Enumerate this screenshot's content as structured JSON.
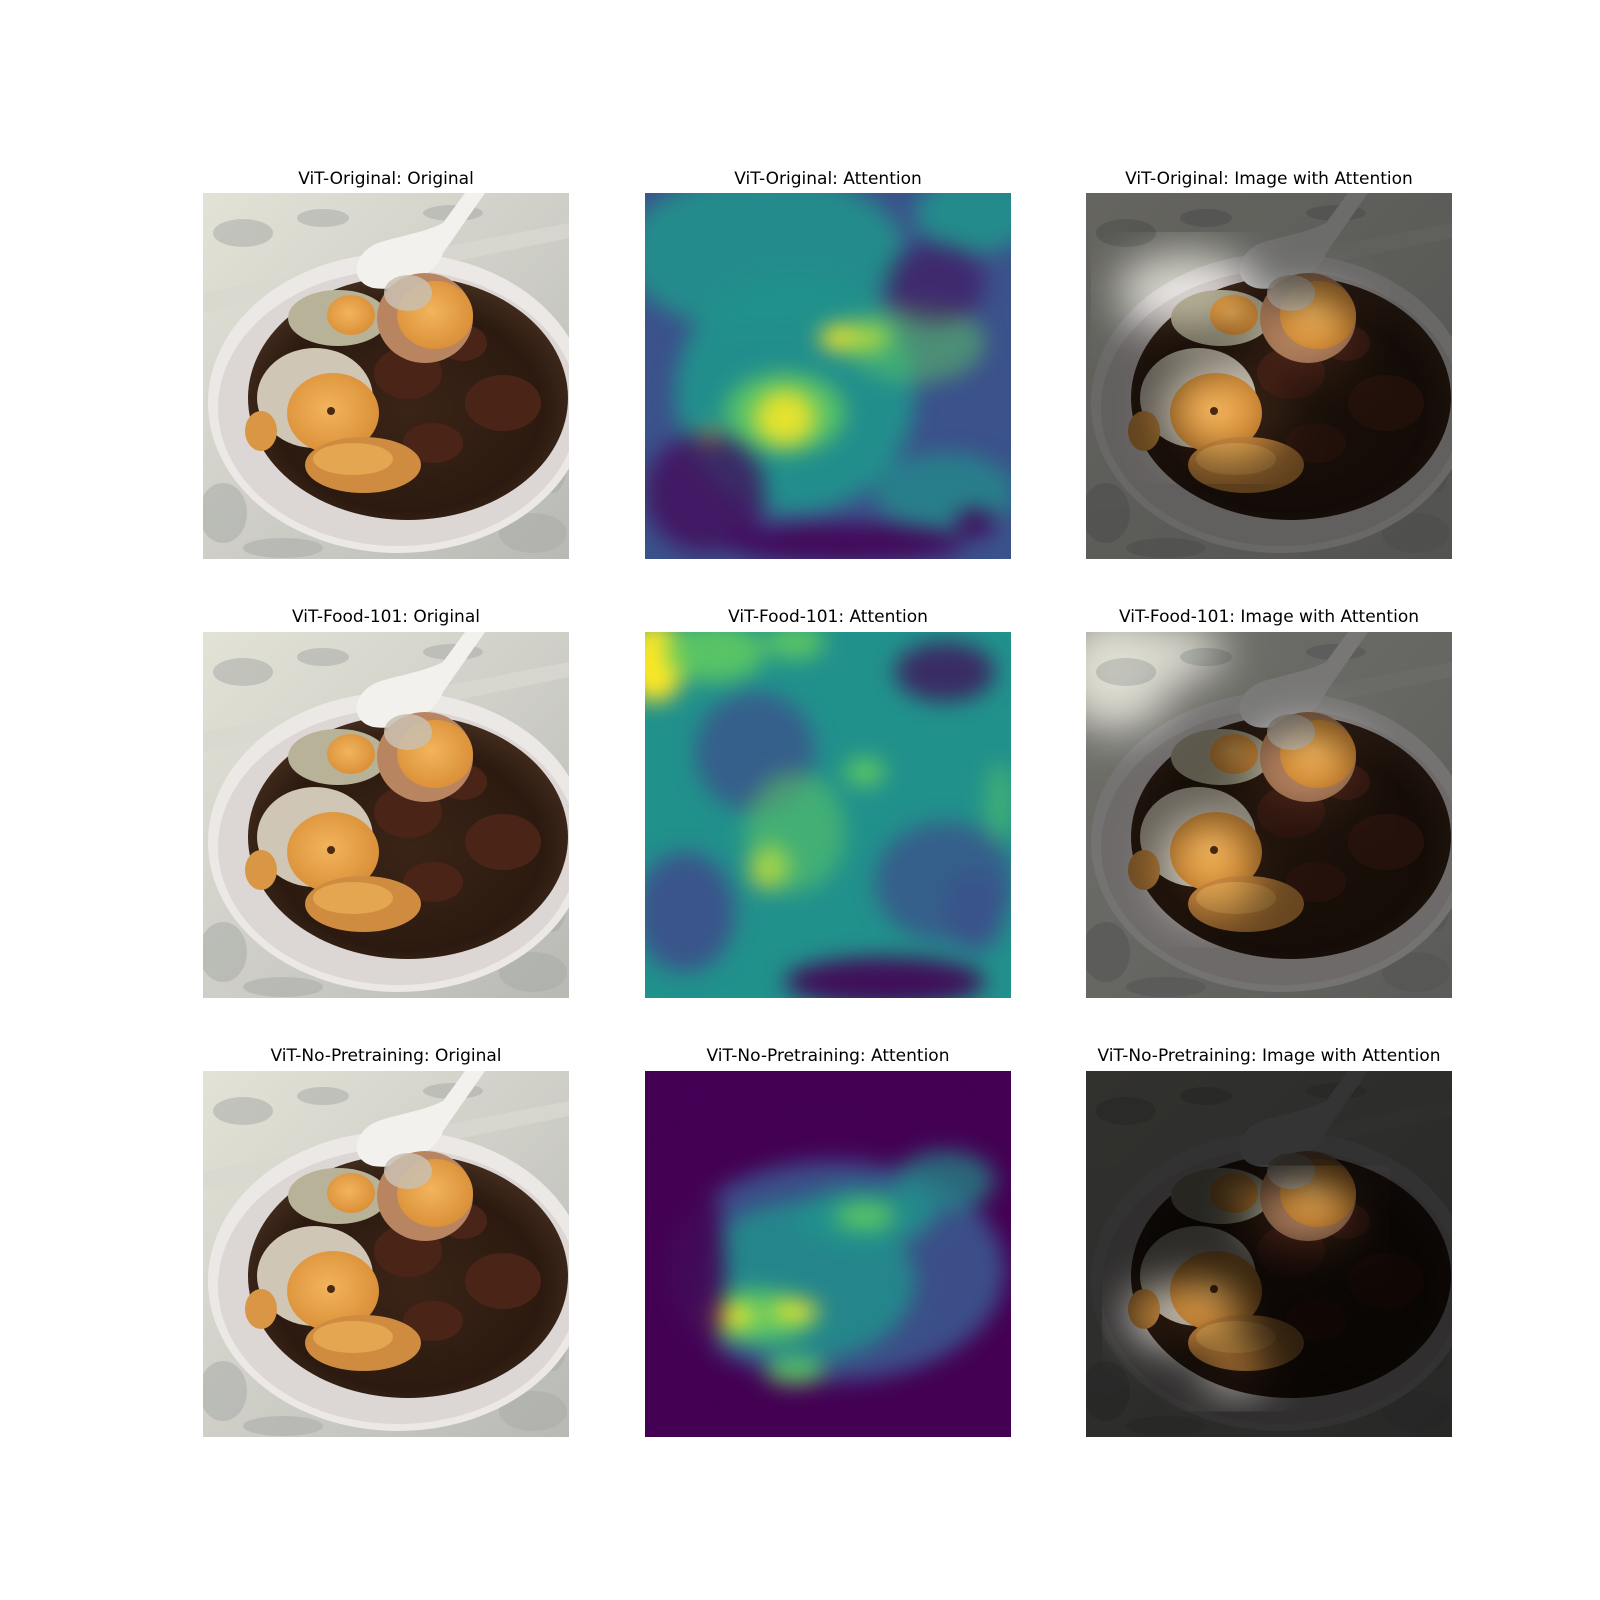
{
  "figure": {
    "rows": [
      {
        "model": "ViT-Original",
        "titles": [
          "ViT-Original: Original",
          "ViT-Original: Attention",
          "ViT-Original: Image with Attention"
        ]
      },
      {
        "model": "ViT-Food-101",
        "titles": [
          "ViT-Food-101: Original",
          "ViT-Food-101: Attention",
          "ViT-Food-101: Image with Attention"
        ]
      },
      {
        "model": "ViT-No-Pretraining",
        "titles": [
          "ViT-No-Pretraining: Original",
          "ViT-No-Pretraining: Attention",
          "ViT-No-Pretraining: Image with Attention"
        ]
      }
    ]
  },
  "colors": {
    "viridis_dark": "#440154",
    "viridis_blue": "#3b528b",
    "viridis_teal": "#21918c",
    "viridis_green": "#5ec962",
    "viridis_yellow": "#fde725"
  }
}
